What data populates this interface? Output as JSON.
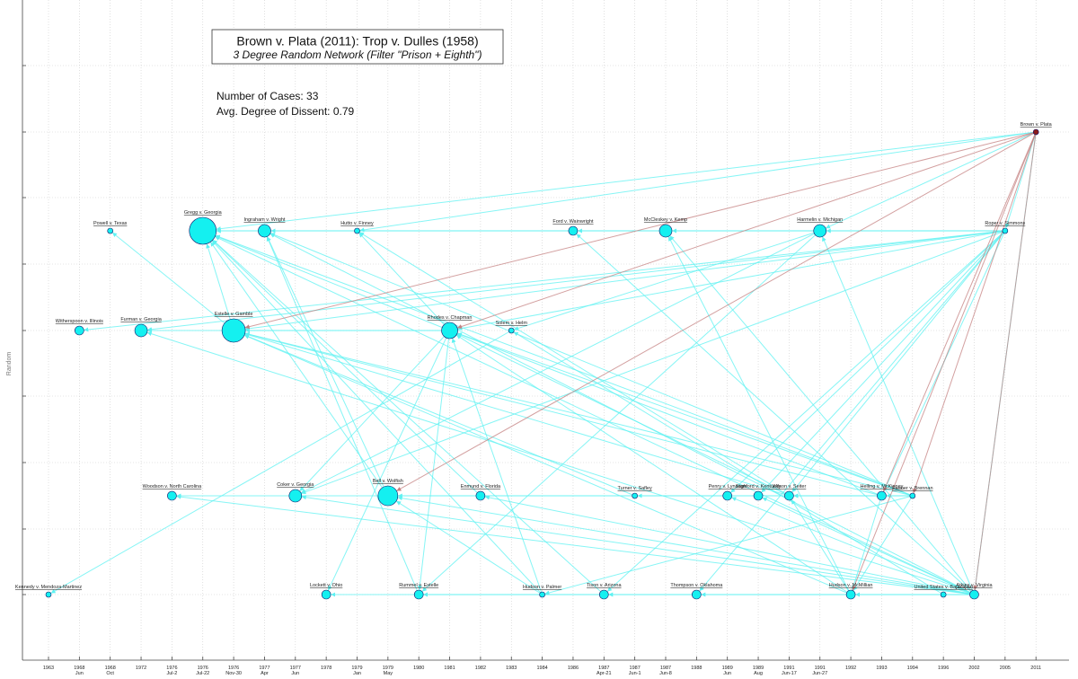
{
  "header": {
    "title": "Brown v. Plata (2011): Trop v. Dulles (1958)",
    "subtitle": "3 Degree Random Network (Filter \"Prison + Eighth\")"
  },
  "stats": [
    "Number of Cases: 33",
    "Avg. Degree of Dissent: 0.79"
  ],
  "axis": {
    "y_label": "Random",
    "x_ticks": [
      {
        "year": "1963"
      },
      {
        "year": "1968",
        "date": "Jun"
      },
      {
        "year": "1968",
        "date": "Oct"
      },
      {
        "year": "1972"
      },
      {
        "year": "1976",
        "date": "Jul-2"
      },
      {
        "year": "1976",
        "date": "Jul-22"
      },
      {
        "year": "1976",
        "date": "Nov-30"
      },
      {
        "year": "1977",
        "date": "Apr"
      },
      {
        "year": "1977",
        "date": "Jun"
      },
      {
        "year": "1978"
      },
      {
        "year": "1979",
        "date": "Jan"
      },
      {
        "year": "1979",
        "date": "May"
      },
      {
        "year": "1980"
      },
      {
        "year": "1981"
      },
      {
        "year": "1982"
      },
      {
        "year": "1983"
      },
      {
        "year": "1984"
      },
      {
        "year": "1986"
      },
      {
        "year": "1987",
        "date": "Apr-21"
      },
      {
        "year": "1987",
        "date": "Jun-1"
      },
      {
        "year": "1987",
        "date": "Jun-8"
      },
      {
        "year": "1988"
      },
      {
        "year": "1989",
        "date": "Jun"
      },
      {
        "year": "1989",
        "date": "Aug"
      },
      {
        "year": "1991",
        "date": "Jun-17"
      },
      {
        "year": "1991",
        "date": "Jun-27"
      },
      {
        "year": "1992"
      },
      {
        "year": "1993"
      },
      {
        "year": "1994"
      },
      {
        "year": "1996"
      },
      {
        "year": "2002"
      },
      {
        "year": "2005"
      },
      {
        "year": "2011"
      }
    ]
  },
  "nodes": [
    {
      "label": "Kennedy v. Mendoza-Martinez"
    },
    {
      "label": "Witherspoon v. Illinois"
    },
    {
      "label": "Powell v. Texas"
    },
    {
      "label": "Furman v. Georgia"
    },
    {
      "label": "Woodson v. North Carolina"
    },
    {
      "label": "Gregg v. Georgia"
    },
    {
      "label": "Estelle v. Gamble"
    },
    {
      "label": "Ingraham v. Wright"
    },
    {
      "label": "Coker v. Georgia"
    },
    {
      "label": "Lockett v. Ohio"
    },
    {
      "label": "Hutto v. Finney"
    },
    {
      "label": "Bell v. Wolfish"
    },
    {
      "label": "Rummel v. Estelle"
    },
    {
      "label": "Rhodes v. Chapman"
    },
    {
      "label": "Enmund v. Florida"
    },
    {
      "label": "Solem v. Helm"
    },
    {
      "label": "Hudson v. Palmer"
    },
    {
      "label": "Ford v. Wainwright"
    },
    {
      "label": "Tison v. Arizona"
    },
    {
      "label": "Turner v. Safley"
    },
    {
      "label": "McCleskey v. Kemp"
    },
    {
      "label": "Thompson v. Oklahoma"
    },
    {
      "label": "Penry v. Lynaugh"
    },
    {
      "label": "Stanford v. Kentucky"
    },
    {
      "label": "Wilson v. Seiter"
    },
    {
      "label": "Harmelin v. Michigan"
    },
    {
      "label": "Hudson v. McMillian"
    },
    {
      "label": "Helling v. McKinney"
    },
    {
      "label": "Farmer v. Brennan"
    },
    {
      "label": "United States v. Bajakajian"
    },
    {
      "label": "Atkins v. Virginia"
    },
    {
      "label": "Roper v. Simmons"
    },
    {
      "label": "Brown v. Plata"
    }
  ]
}
